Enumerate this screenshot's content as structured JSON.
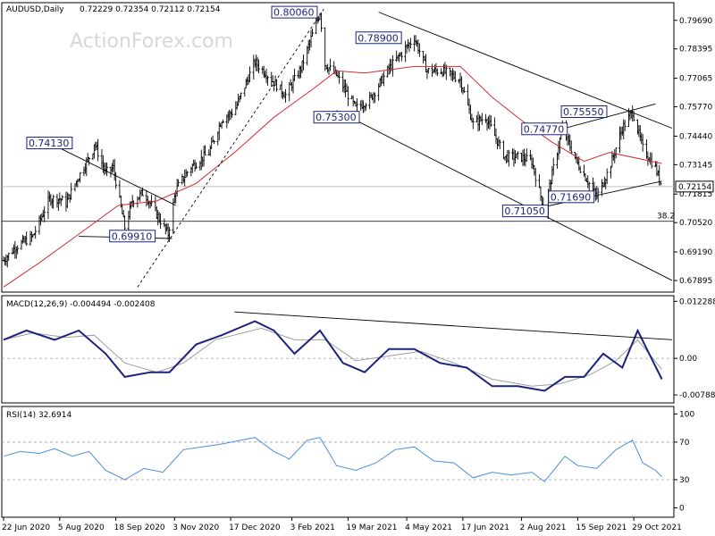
{
  "chart_data": [
    {
      "type": "candlestick",
      "header": {
        "symbol": "AUDUSD,Daily",
        "values": "0.72229 0.72354 0.72112 0.72154"
      },
      "watermark": "ActionForex.com",
      "x_ticks": [
        "22 Jun 2020",
        "5 Aug 2020",
        "18 Sep 2020",
        "3 Nov 2020",
        "17 Dec 2020",
        "3 Feb 2021",
        "19 Mar 2021",
        "4 May 2021",
        "17 Jun 2021",
        "2 Aug 2021",
        "15 Sep 2021",
        "29 Oct 2021"
      ],
      "y_ticks": [
        "0.79690",
        "0.78395",
        "0.77065",
        "0.75770",
        "0.74440",
        "0.73145",
        "0.71815",
        "0.70520",
        "0.69190",
        "0.67895"
      ],
      "ylim": [
        0.6737,
        0.8049
      ],
      "last_price": "0.72154",
      "fib_label": "38.2",
      "fib_level": 0.7058,
      "colors": {
        "price": "#000000",
        "moving_average": "#d32f2f",
        "label_border": "#1a237e"
      },
      "annotations": [
        {
          "text": "0.80060",
          "date": "2021-02-05",
          "price": 0.8006
        },
        {
          "text": "0.78900",
          "date": "2021-04-12",
          "price": 0.789
        },
        {
          "text": "0.74130",
          "date": "2020-07-28",
          "price": 0.7413
        },
        {
          "text": "0.75300",
          "date": "2021-03-10",
          "price": 0.753
        },
        {
          "text": "0.74770",
          "date": "2021-08-20",
          "price": 0.7477
        },
        {
          "text": "0.75550",
          "date": "2021-09-20",
          "price": 0.7555
        },
        {
          "text": "0.69910",
          "date": "2020-10-01",
          "price": 0.6991
        },
        {
          "text": "0.71690",
          "date": "2021-09-10",
          "price": 0.7169
        },
        {
          "text": "0.71050",
          "date": "2021-08-05",
          "price": 0.7105
        }
      ],
      "price_path": [
        [
          "2020-06-22",
          0.688
        ],
        [
          "2020-07-01",
          0.694
        ],
        [
          "2020-07-15",
          0.699
        ],
        [
          "2020-07-28",
          0.716
        ],
        [
          "2020-08-05",
          0.716
        ],
        [
          "2020-08-10",
          0.714
        ],
        [
          "2020-08-18",
          0.724
        ],
        [
          "2020-08-31",
          0.738
        ],
        [
          "2020-09-01",
          0.7413
        ],
        [
          "2020-09-10",
          0.728
        ],
        [
          "2020-09-16",
          0.73
        ],
        [
          "2020-09-25",
          0.703
        ],
        [
          "2020-10-01",
          0.715
        ],
        [
          "2020-10-10",
          0.719
        ],
        [
          "2020-10-20",
          0.709
        ],
        [
          "2020-10-29",
          0.7
        ],
        [
          "2020-11-04",
          0.72
        ],
        [
          "2020-11-15",
          0.73
        ],
        [
          "2020-11-30",
          0.737
        ],
        [
          "2020-12-10",
          0.752
        ],
        [
          "2020-12-20",
          0.756
        ],
        [
          "2021-01-05",
          0.778
        ],
        [
          "2021-01-15",
          0.772
        ],
        [
          "2021-01-29",
          0.763
        ],
        [
          "2021-02-10",
          0.775
        ],
        [
          "2021-02-25",
          0.8006
        ],
        [
          "2021-03-01",
          0.777
        ],
        [
          "2021-03-10",
          0.772
        ],
        [
          "2021-03-25",
          0.757
        ],
        [
          "2021-04-05",
          0.761
        ],
        [
          "2021-04-20",
          0.775
        ],
        [
          "2021-05-10",
          0.789
        ],
        [
          "2021-05-20",
          0.774
        ],
        [
          "2021-06-01",
          0.774
        ],
        [
          "2021-06-15",
          0.77
        ],
        [
          "2021-06-25",
          0.75
        ],
        [
          "2021-07-05",
          0.753
        ],
        [
          "2021-07-20",
          0.735
        ],
        [
          "2021-08-01",
          0.735
        ],
        [
          "2021-08-10",
          0.733
        ],
        [
          "2021-08-20",
          0.7105
        ],
        [
          "2021-08-27",
          0.73
        ],
        [
          "2021-09-03",
          0.7477
        ],
        [
          "2021-09-15",
          0.732
        ],
        [
          "2021-09-30",
          0.7169
        ],
        [
          "2021-10-10",
          0.73
        ],
        [
          "2021-10-20",
          0.748
        ],
        [
          "2021-10-28",
          0.7555
        ],
        [
          "2021-11-05",
          0.739
        ],
        [
          "2021-11-15",
          0.73
        ],
        [
          "2021-11-20",
          0.7215
        ]
      ],
      "moving_average": [
        [
          "2020-06-22",
          0.676
        ],
        [
          "2020-07-20",
          0.687
        ],
        [
          "2020-08-20",
          0.7
        ],
        [
          "2020-09-20",
          0.713
        ],
        [
          "2020-10-20",
          0.715
        ],
        [
          "2020-11-20",
          0.723
        ],
        [
          "2020-12-20",
          0.737
        ],
        [
          "2021-01-20",
          0.753
        ],
        [
          "2021-02-20",
          0.766
        ],
        [
          "2021-03-10",
          0.774
        ],
        [
          "2021-04-01",
          0.773
        ],
        [
          "2021-05-10",
          0.776
        ],
        [
          "2021-06-15",
          0.776
        ],
        [
          "2021-07-10",
          0.762
        ],
        [
          "2021-08-01",
          0.752
        ],
        [
          "2021-08-25",
          0.742
        ],
        [
          "2021-09-20",
          0.733
        ],
        [
          "2021-10-10",
          0.737
        ],
        [
          "2021-11-20",
          0.732
        ]
      ],
      "trendlines": [
        [
          [
            "2021-04-12",
            0.8006
          ],
          [
            "2021-11-28",
            0.748
          ]
        ],
        [
          [
            "2021-03-10",
            0.756
          ],
          [
            "2021-11-28",
            0.679
          ]
        ],
        [
          [
            "2020-07-28",
            0.7413
          ],
          [
            "2020-11-04",
            0.713
          ]
        ],
        [
          [
            "2020-08-20",
            0.699
          ],
          [
            "2020-11-01",
            0.698
          ]
        ],
        [
          [
            "2021-08-05",
            0.7105
          ],
          [
            "2021-11-20",
            0.724
          ]
        ],
        [
          [
            "2021-09-03",
            0.7477
          ],
          [
            "2021-11-15",
            0.759
          ]
        ]
      ],
      "dashed_trendlines": [
        [
          [
            "2020-10-05",
            0.676
          ],
          [
            "2021-02-28",
            0.802
          ]
        ]
      ]
    },
    {
      "type": "line",
      "label": "MACD(12,26,9) -0.004494 -0.002408",
      "y_ticks": [
        "0.012288",
        "0.00",
        "-0.007887"
      ],
      "ylim": [
        -0.0096,
        0.0135
      ],
      "zero": 0,
      "colors": {
        "macd": "#1a237e",
        "signal": "#9e9e9e"
      },
      "series": [
        {
          "name": "MACD",
          "values": [
            [
              "2020-06-22",
              0.004
            ],
            [
              "2020-07-10",
              0.006
            ],
            [
              "2020-08-01",
              0.004
            ],
            [
              "2020-08-20",
              0.006
            ],
            [
              "2020-09-10",
              0.001
            ],
            [
              "2020-09-25",
              -0.004
            ],
            [
              "2020-10-15",
              -0.003
            ],
            [
              "2020-10-30",
              -0.003
            ],
            [
              "2020-11-20",
              0.003
            ],
            [
              "2020-12-10",
              0.005
            ],
            [
              "2021-01-05",
              0.008
            ],
            [
              "2021-01-20",
              0.006
            ],
            [
              "2021-02-05",
              0.001
            ],
            [
              "2021-02-25",
              0.006
            ],
            [
              "2021-03-15",
              -0.001
            ],
            [
              "2021-04-01",
              -0.003
            ],
            [
              "2021-04-20",
              0.002
            ],
            [
              "2021-05-10",
              0.002
            ],
            [
              "2021-05-30",
              -0.001
            ],
            [
              "2021-06-20",
              -0.002
            ],
            [
              "2021-07-10",
              -0.006
            ],
            [
              "2021-07-30",
              -0.006
            ],
            [
              "2021-08-20",
              -0.007
            ],
            [
              "2021-09-05",
              -0.004
            ],
            [
              "2021-09-20",
              -0.004
            ],
            [
              "2021-10-05",
              0.001
            ],
            [
              "2021-10-20",
              -0.002
            ],
            [
              "2021-11-01",
              0.006
            ],
            [
              "2021-11-10",
              0.001
            ],
            [
              "2021-11-20",
              -0.0045
            ]
          ]
        },
        {
          "name": "Signal",
          "values": [
            [
              "2020-06-22",
              0.004
            ],
            [
              "2020-07-15",
              0.0055
            ],
            [
              "2020-08-10",
              0.0045
            ],
            [
              "2020-09-01",
              0.005
            ],
            [
              "2020-09-25",
              -0.001
            ],
            [
              "2020-10-20",
              -0.003
            ],
            [
              "2020-11-10",
              -0.001
            ],
            [
              "2020-12-05",
              0.004
            ],
            [
              "2021-01-10",
              0.0065
            ],
            [
              "2021-02-05",
              0.004
            ],
            [
              "2021-03-01",
              0.004
            ],
            [
              "2021-03-25",
              -0.0005
            ],
            [
              "2021-04-20",
              0.0005
            ],
            [
              "2021-05-15",
              0.0015
            ],
            [
              "2021-06-10",
              -0.001
            ],
            [
              "2021-07-10",
              -0.0045
            ],
            [
              "2021-08-10",
              -0.006
            ],
            [
              "2021-09-01",
              -0.0055
            ],
            [
              "2021-09-25",
              -0.0035
            ],
            [
              "2021-10-15",
              -0.0005
            ],
            [
              "2021-11-01",
              0.004
            ],
            [
              "2021-11-20",
              -0.0024
            ]
          ]
        }
      ],
      "trendline": [
        [
          "2020-12-20",
          0.01
        ],
        [
          "2021-11-28",
          0.004
        ]
      ]
    },
    {
      "type": "line",
      "label": "RSI(14) 32.6914",
      "y_ticks": [
        "100",
        "70",
        "30",
        "0"
      ],
      "ylim": [
        -10,
        108
      ],
      "levels": [
        70,
        30
      ],
      "colors": {
        "rsi": "#4a90d9"
      },
      "series": [
        {
          "name": "RSI",
          "values": [
            [
              "2020-06-22",
              55
            ],
            [
              "2020-07-05",
              60
            ],
            [
              "2020-07-20",
              58
            ],
            [
              "2020-08-01",
              63
            ],
            [
              "2020-08-15",
              55
            ],
            [
              "2020-08-28",
              60
            ],
            [
              "2020-09-10",
              40
            ],
            [
              "2020-09-25",
              30
            ],
            [
              "2020-10-10",
              42
            ],
            [
              "2020-10-25",
              38
            ],
            [
              "2020-11-10",
              62
            ],
            [
              "2020-11-25",
              65
            ],
            [
              "2020-12-10",
              68
            ],
            [
              "2020-12-25",
              72
            ],
            [
              "2021-01-05",
              75
            ],
            [
              "2021-01-20",
              60
            ],
            [
              "2021-02-01",
              52
            ],
            [
              "2021-02-15",
              72
            ],
            [
              "2021-02-25",
              75
            ],
            [
              "2021-03-10",
              45
            ],
            [
              "2021-03-25",
              40
            ],
            [
              "2021-04-10",
              48
            ],
            [
              "2021-04-25",
              62
            ],
            [
              "2021-05-10",
              65
            ],
            [
              "2021-05-25",
              50
            ],
            [
              "2021-06-10",
              48
            ],
            [
              "2021-06-25",
              32
            ],
            [
              "2021-07-10",
              38
            ],
            [
              "2021-07-25",
              35
            ],
            [
              "2021-08-10",
              38
            ],
            [
              "2021-08-20",
              28
            ],
            [
              "2021-09-05",
              55
            ],
            [
              "2021-09-15",
              45
            ],
            [
              "2021-09-30",
              42
            ],
            [
              "2021-10-15",
              62
            ],
            [
              "2021-10-28",
              72
            ],
            [
              "2021-11-05",
              48
            ],
            [
              "2021-11-15",
              40
            ],
            [
              "2021-11-20",
              33
            ]
          ]
        }
      ]
    }
  ]
}
